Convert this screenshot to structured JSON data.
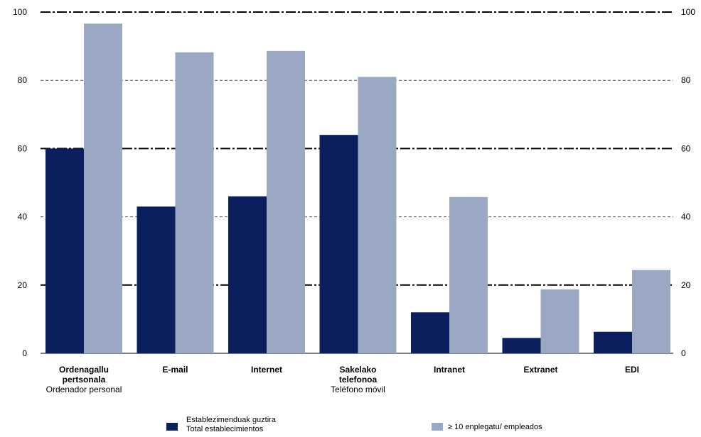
{
  "chart_data": {
    "type": "bar",
    "categories": [
      {
        "eu": "Ordenagallu pertsonala",
        "eu_lines": [
          "Ordenagallu",
          "pertsonala"
        ],
        "es": "Ordenador personal"
      },
      {
        "eu": "E-mail",
        "eu_lines": [
          "E-mail"
        ],
        "es": ""
      },
      {
        "eu": "Internet",
        "eu_lines": [
          "Internet"
        ],
        "es": ""
      },
      {
        "eu": "Sakelako telefonoa",
        "eu_lines": [
          "Sakelako",
          "telefonoa"
        ],
        "es": "Teléfono móvil"
      },
      {
        "eu": "Intranet",
        "eu_lines": [
          "Intranet"
        ],
        "es": ""
      },
      {
        "eu": "Extranet",
        "eu_lines": [
          "Extranet"
        ],
        "es": ""
      },
      {
        "eu": "EDI",
        "eu_lines": [
          "EDI"
        ],
        "es": ""
      }
    ],
    "series": [
      {
        "name": "Establezimenduak guztira / Total establecimientos",
        "name_lines": [
          "Establezimenduak guztira",
          "Total establecimientos"
        ],
        "color": "#0b1f5e",
        "values": [
          60,
          43,
          46,
          64,
          12,
          4.5,
          6.3
        ]
      },
      {
        "name": "≥ 10 enplegatu/ empleados",
        "name_lines": [
          "≥ 10 enplegatu/ empleados"
        ],
        "color": "#9aa8c4",
        "values": [
          96.6,
          88.2,
          88.6,
          81,
          45.8,
          18.7,
          24.4
        ]
      }
    ],
    "ylim": [
      0,
      100
    ],
    "yticks": [
      "0",
      "20",
      "40",
      "60",
      "80",
      "100"
    ],
    "right_axis": true,
    "grid": "dashed horizontal",
    "legend_position": "bottom"
  }
}
